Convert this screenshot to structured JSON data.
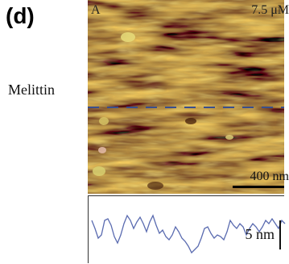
{
  "figure": {
    "panel_letter": "(d)",
    "row_label": "Melittin",
    "afm_image": {
      "corner_letter": "A",
      "concentration": "7.5 μM",
      "scale_bar_label": "400 nm",
      "colors": {
        "dark": "#5a1f0a",
        "mid": "#8e5218",
        "light": "#c9a93a",
        "highlight": "#e8df7a",
        "line": "#3a4f8c"
      }
    },
    "profile": {
      "scale_label": "5 nm",
      "line_color": "#5a6bb0"
    }
  }
}
